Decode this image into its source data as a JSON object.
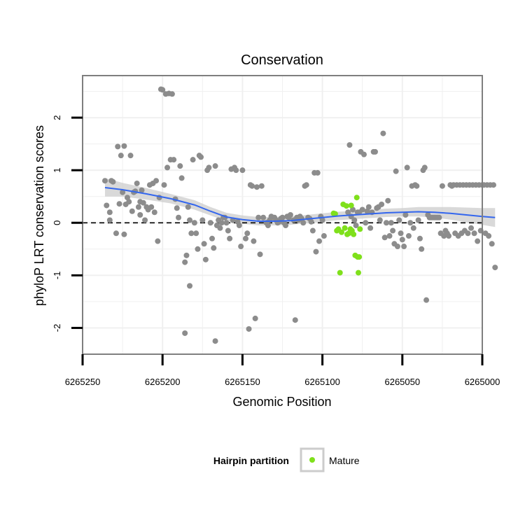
{
  "chart_data": {
    "type": "scatter",
    "title": "Conservation",
    "xlabel": "Genomic Position",
    "ylabel": "phyloP LRT conservation scores",
    "x_reversed": true,
    "xlim": [
      6265000,
      6265250
    ],
    "ylim": [
      -2.5,
      2.8
    ],
    "x_ticks": [
      6265250,
      6265200,
      6265150,
      6265100,
      6265050,
      6265000
    ],
    "x_tick_labels": [
      "6265250",
      "6265200",
      "6265150",
      "6265100",
      "6265050",
      "6265000"
    ],
    "y_ticks": [
      -2,
      -1,
      0,
      1,
      2
    ],
    "y_tick_labels": [
      "-2",
      "-1",
      "0",
      "1",
      "2"
    ],
    "reference_line": {
      "y": 0,
      "style": "dashed"
    },
    "grid": true,
    "colors": {
      "other": "#8c8c8c",
      "mature": "#7fe01b",
      "smooth": "#3366ee",
      "band": "#cccccc",
      "panel_border": "#7f7f7f",
      "grid": "#f0f0f0"
    },
    "legend": {
      "title": "Hairpin partition",
      "position": "bottom",
      "entries": [
        {
          "label": "Mature",
          "color": "#7fe01b"
        }
      ]
    },
    "series": [
      {
        "name": "Other",
        "points": [
          [
            6265236,
            0.8
          ],
          [
            6265235,
            0.33
          ],
          [
            6265233,
            0.2
          ],
          [
            6265233,
            0.05
          ],
          [
            6265232,
            0.8
          ],
          [
            6265231,
            0.78
          ],
          [
            6265229,
            -0.2
          ],
          [
            6265228,
            1.45
          ],
          [
            6265227,
            0.36
          ],
          [
            6265226,
            1.28
          ],
          [
            6265225,
            0.58
          ],
          [
            6265224,
            -0.22
          ],
          [
            6265224,
            1.46
          ],
          [
            6265223,
            0.35
          ],
          [
            6265222,
            0.48
          ],
          [
            6265221,
            0.4
          ],
          [
            6265220,
            1.28
          ],
          [
            6265219,
            0.22
          ],
          [
            6265218,
            0.58
          ],
          [
            6265217,
            0.6
          ],
          [
            6265216,
            0.75
          ],
          [
            6265215,
            0.3
          ],
          [
            6265214,
            0.4
          ],
          [
            6265214,
            0.15
          ],
          [
            6265213,
            0.62
          ],
          [
            6265212,
            0.38
          ],
          [
            6265211,
            0.05
          ],
          [
            6265210,
            0.3
          ],
          [
            6265209,
            0.25
          ],
          [
            6265208,
            0.72
          ],
          [
            6265207,
            0.3
          ],
          [
            6265206,
            0.75
          ],
          [
            6265205,
            0.2
          ],
          [
            6265204,
            0.8
          ],
          [
            6265203,
            -0.35
          ],
          [
            6265201,
            2.54
          ],
          [
            6265200,
            2.53
          ],
          [
            6265198,
            2.45
          ],
          [
            6265196,
            2.46
          ],
          [
            6265194,
            2.45
          ],
          [
            6265202,
            0.48
          ],
          [
            6265199,
            0.72
          ],
          [
            6265197,
            1.05
          ],
          [
            6265195,
            1.2
          ],
          [
            6265193,
            1.2
          ],
          [
            6265192,
            0.45
          ],
          [
            6265191,
            0.28
          ],
          [
            6265190,
            0.1
          ],
          [
            6265189,
            1.08
          ],
          [
            6265188,
            0.85
          ],
          [
            6265186,
            -0.75
          ],
          [
            6265185,
            -0.62
          ],
          [
            6265186,
            -2.1
          ],
          [
            6265184,
            0.3
          ],
          [
            6265183,
            0.05
          ],
          [
            6265183,
            -1.2
          ],
          [
            6265182,
            -0.2
          ],
          [
            6265181,
            1.2
          ],
          [
            6265180,
            0.0
          ],
          [
            6265179,
            -0.2
          ],
          [
            6265178,
            -0.5
          ],
          [
            6265177,
            1.28
          ],
          [
            6265176,
            1.25
          ],
          [
            6265175,
            0.05
          ],
          [
            6265174,
            -0.4
          ],
          [
            6265173,
            -0.7
          ],
          [
            6265172,
            1.0
          ],
          [
            6265171,
            1.05
          ],
          [
            6265170,
            0.0
          ],
          [
            6265169,
            -0.3
          ],
          [
            6265168,
            -0.48
          ],
          [
            6265167,
            -2.25
          ],
          [
            6265167,
            1.08
          ],
          [
            6265166,
            -0.05
          ],
          [
            6265165,
            0.05
          ],
          [
            6265164,
            -0.1
          ],
          [
            6265163,
            0.0
          ],
          [
            6265162,
            0.1
          ],
          [
            6265161,
            0.1
          ],
          [
            6265160,
            0.0
          ],
          [
            6265159,
            -0.15
          ],
          [
            6265158,
            -0.3
          ],
          [
            6265157,
            1.02
          ],
          [
            6265156,
            0.05
          ],
          [
            6265155,
            1.05
          ],
          [
            6265154,
            1.0
          ],
          [
            6265153,
            0.02
          ],
          [
            6265152,
            -0.05
          ],
          [
            6265151,
            -0.45
          ],
          [
            6265150,
            1.0
          ],
          [
            6265148,
            -0.3
          ],
          [
            6265147,
            -0.2
          ],
          [
            6265146,
            -2.02
          ],
          [
            6265145,
            0.72
          ],
          [
            6265144,
            0.7
          ],
          [
            6265143,
            -0.35
          ],
          [
            6265142,
            -1.82
          ],
          [
            6265141,
            0.68
          ],
          [
            6265140,
            0.1
          ],
          [
            6265139,
            -0.6
          ],
          [
            6265138,
            0.7
          ],
          [
            6265137,
            0.1
          ],
          [
            6265135,
            0.0
          ],
          [
            6265134,
            -0.05
          ],
          [
            6265133,
            0.05
          ],
          [
            6265132,
            0.12
          ],
          [
            6265131,
            0.1
          ],
          [
            6265130,
            0.1
          ],
          [
            6265129,
            0.05
          ],
          [
            6265128,
            0.0
          ],
          [
            6265127,
            0.02
          ],
          [
            6265126,
            0.08
          ],
          [
            6265125,
            0.1
          ],
          [
            6265124,
            0.0
          ],
          [
            6265123,
            -0.05
          ],
          [
            6265122,
            0.12
          ],
          [
            6265121,
            0.1
          ],
          [
            6265120,
            0.15
          ],
          [
            6265118,
            0.05
          ],
          [
            6265117,
            -1.85
          ],
          [
            6265116,
            0.1
          ],
          [
            6265115,
            0.05
          ],
          [
            6265114,
            0.12
          ],
          [
            6265113,
            0.08
          ],
          [
            6265112,
            0.0
          ],
          [
            6265111,
            0.7
          ],
          [
            6265110,
            0.72
          ],
          [
            6265109,
            0.1
          ],
          [
            6265108,
            0.08
          ],
          [
            6265107,
            0.02
          ],
          [
            6265106,
            -0.15
          ],
          [
            6265105,
            0.95
          ],
          [
            6265104,
            -0.55
          ],
          [
            6265103,
            0.95
          ],
          [
            6265102,
            -0.35
          ],
          [
            6265101,
            0.12
          ],
          [
            6265100,
            0.05
          ],
          [
            6265099,
            -0.25
          ],
          [
            6265084,
            0.2
          ],
          [
            6265083,
            1.48
          ],
          [
            6265082,
            0.12
          ],
          [
            6265081,
            0.25
          ],
          [
            6265080,
            0.05
          ],
          [
            6265079,
            -0.05
          ],
          [
            6265078,
            0.2
          ],
          [
            6265077,
            0.2
          ],
          [
            6265076,
            1.35
          ],
          [
            6265075,
            0.25
          ],
          [
            6265074,
            1.3
          ],
          [
            6265073,
            0.0
          ],
          [
            6265072,
            0.22
          ],
          [
            6265071,
            0.3
          ],
          [
            6265070,
            -0.1
          ],
          [
            6265069,
            0.2
          ],
          [
            6265068,
            1.35
          ],
          [
            6265067,
            1.35
          ],
          [
            6265066,
            0.28
          ],
          [
            6265065,
            0.3
          ],
          [
            6265064,
            0.05
          ],
          [
            6265063,
            0.35
          ],
          [
            6265062,
            1.7
          ],
          [
            6265061,
            -0.28
          ],
          [
            6265060,
            0.0
          ],
          [
            6265059,
            0.42
          ],
          [
            6265058,
            -0.25
          ],
          [
            6265057,
            0.0
          ],
          [
            6265056,
            -0.15
          ],
          [
            6265055,
            -0.4
          ],
          [
            6265054,
            0.98
          ],
          [
            6265053,
            -0.45
          ],
          [
            6265052,
            0.05
          ],
          [
            6265051,
            -0.2
          ],
          [
            6265050,
            -0.32
          ],
          [
            6265049,
            -0.45
          ],
          [
            6265048,
            0.15
          ],
          [
            6265047,
            1.05
          ],
          [
            6265046,
            -0.25
          ],
          [
            6265045,
            0.0
          ],
          [
            6265044,
            0.7
          ],
          [
            6265043,
            -0.1
          ],
          [
            6265042,
            0.72
          ],
          [
            6265041,
            0.7
          ],
          [
            6265040,
            0.05
          ],
          [
            6265039,
            -0.3
          ],
          [
            6265038,
            -0.5
          ],
          [
            6265037,
            1.0
          ],
          [
            6265036,
            1.05
          ],
          [
            6265035,
            -1.47
          ],
          [
            6265034,
            0.15
          ],
          [
            6265033,
            0.1
          ],
          [
            6265032,
            0.1
          ],
          [
            6265031,
            0.1
          ],
          [
            6265030,
            0.1
          ],
          [
            6265029,
            0.1
          ],
          [
            6265028,
            0.1
          ],
          [
            6265027,
            0.1
          ],
          [
            6265026,
            -0.2
          ],
          [
            6265025,
            0.7
          ],
          [
            6265024,
            -0.25
          ],
          [
            6265023,
            -0.15
          ],
          [
            6265022,
            -0.2
          ],
          [
            6265021,
            -0.25
          ],
          [
            6265020,
            0.72
          ],
          [
            6265019,
            0.7
          ],
          [
            6265018,
            0.72
          ],
          [
            6265017,
            -0.2
          ],
          [
            6265016,
            0.72
          ],
          [
            6265015,
            -0.25
          ],
          [
            6265014,
            0.72
          ],
          [
            6265013,
            -0.2
          ],
          [
            6265012,
            0.72
          ],
          [
            6265011,
            -0.15
          ],
          [
            6265010,
            0.72
          ],
          [
            6265009,
            -0.2
          ],
          [
            6265008,
            0.72
          ],
          [
            6265007,
            -0.1
          ],
          [
            6265006,
            0.72
          ],
          [
            6265005,
            -0.2
          ],
          [
            6265004,
            0.72
          ],
          [
            6265003,
            -0.35
          ],
          [
            6265002,
            0.72
          ],
          [
            6265001,
            -0.15
          ],
          [
            6265000,
            0.72
          ],
          [
            6264999,
            0.72
          ],
          [
            6264998,
            -0.2
          ],
          [
            6264997,
            0.72
          ],
          [
            6264996,
            -0.25
          ],
          [
            6264995,
            0.72
          ],
          [
            6264994,
            -0.4
          ],
          [
            6264993,
            0.72
          ],
          [
            6264992,
            -0.85
          ]
        ]
      },
      {
        "name": "Mature",
        "points": [
          [
            6265093,
            0.18
          ],
          [
            6265092,
            0.17
          ],
          [
            6265091,
            -0.15
          ],
          [
            6265090,
            -0.12
          ],
          [
            6265089,
            -0.95
          ],
          [
            6265088,
            -0.18
          ],
          [
            6265087,
            0.35
          ],
          [
            6265086,
            -0.1
          ],
          [
            6265085,
            0.32
          ],
          [
            6265084.5,
            -0.22
          ],
          [
            6265083.5,
            -0.2
          ],
          [
            6265082.5,
            -0.12
          ],
          [
            6265082,
            0.33
          ],
          [
            6265081.5,
            -0.15
          ],
          [
            6265080.5,
            -0.22
          ],
          [
            6265079.5,
            -0.62
          ],
          [
            6265078.5,
            0.48
          ],
          [
            6265078,
            -0.65
          ],
          [
            6265077.5,
            -0.95
          ],
          [
            6265077,
            -0.65
          ],
          [
            6265076.5,
            -0.12
          ]
        ]
      }
    ],
    "smooth_curve": [
      [
        6265236,
        0.67
      ],
      [
        6265225,
        0.63
      ],
      [
        6265210,
        0.55
      ],
      [
        6265195,
        0.46
      ],
      [
        6265180,
        0.34
      ],
      [
        6265170,
        0.22
      ],
      [
        6265160,
        0.11
      ],
      [
        6265150,
        0.06
      ],
      [
        6265140,
        0.03
      ],
      [
        6265130,
        0.03
      ],
      [
        6265120,
        0.04
      ],
      [
        6265110,
        0.07
      ],
      [
        6265100,
        0.1
      ],
      [
        6265090,
        0.13
      ],
      [
        6265080,
        0.15
      ],
      [
        6265070,
        0.17
      ],
      [
        6265060,
        0.19
      ],
      [
        6265050,
        0.2
      ],
      [
        6265040,
        0.21
      ],
      [
        6265030,
        0.2
      ],
      [
        6265020,
        0.18
      ],
      [
        6265010,
        0.15
      ],
      [
        6265000,
        0.12
      ],
      [
        6264992,
        0.1
      ]
    ],
    "smooth_band": [
      [
        6265236,
        0.5,
        0.85
      ],
      [
        6265225,
        0.5,
        0.76
      ],
      [
        6265210,
        0.44,
        0.66
      ],
      [
        6265195,
        0.37,
        0.55
      ],
      [
        6265180,
        0.25,
        0.43
      ],
      [
        6265170,
        0.14,
        0.3
      ],
      [
        6265160,
        0.03,
        0.19
      ],
      [
        6265150,
        -0.02,
        0.14
      ],
      [
        6265140,
        -0.05,
        0.11
      ],
      [
        6265130,
        -0.05,
        0.11
      ],
      [
        6265120,
        -0.04,
        0.12
      ],
      [
        6265110,
        -0.01,
        0.15
      ],
      [
        6265100,
        0.02,
        0.18
      ],
      [
        6265090,
        0.05,
        0.21
      ],
      [
        6265080,
        0.07,
        0.23
      ],
      [
        6265070,
        0.09,
        0.25
      ],
      [
        6265060,
        0.11,
        0.27
      ],
      [
        6265050,
        0.12,
        0.28
      ],
      [
        6265040,
        0.12,
        0.3
      ],
      [
        6265030,
        0.1,
        0.3
      ],
      [
        6265020,
        0.06,
        0.3
      ],
      [
        6265010,
        0.01,
        0.29
      ],
      [
        6265000,
        -0.04,
        0.28
      ],
      [
        6264992,
        -0.08,
        0.28
      ]
    ]
  }
}
